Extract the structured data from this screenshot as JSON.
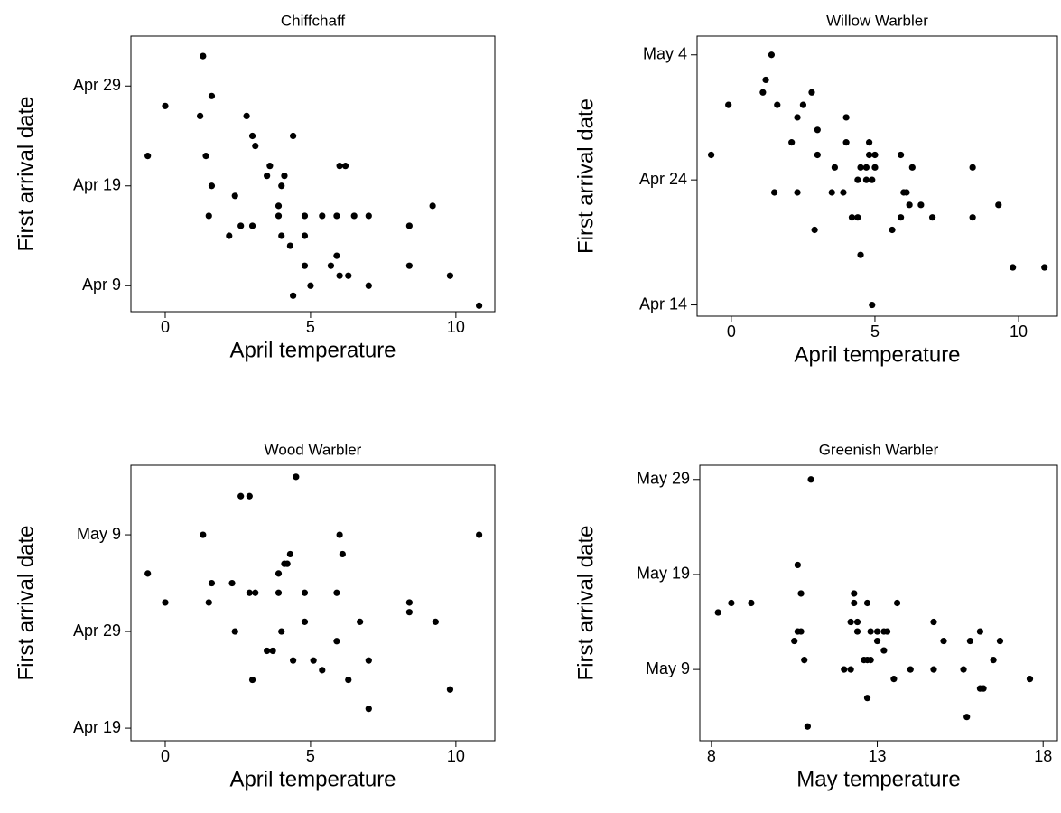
{
  "chart_data": [
    {
      "type": "scatter",
      "title": "Chiffchaff",
      "xlabel": "April temperature",
      "ylabel": "First arrival date",
      "color": "#000000",
      "x": [
        -0.6,
        0.0,
        1.3,
        1.2,
        1.6,
        2.8,
        3.0,
        3.1,
        1.4,
        3.6,
        4.1,
        3.5,
        4.0,
        1.6,
        2.4,
        1.5,
        2.6,
        3.0,
        3.9,
        3.9,
        2.2,
        4.0,
        4.3,
        4.8,
        4.8,
        4.8,
        4.4,
        5.4,
        6.0,
        6.2,
        5.9,
        7.0,
        6.5,
        5.7,
        5.9,
        6.0,
        6.3,
        5.0,
        7.0,
        4.4,
        8.4,
        9.2,
        8.4,
        9.8,
        10.8
      ],
      "y": [
        22,
        27,
        32,
        26,
        28,
        26,
        24,
        23,
        22,
        21,
        20,
        20,
        19,
        19,
        18,
        16,
        15,
        15,
        16,
        17,
        14,
        14,
        13,
        16,
        14,
        11,
        24,
        16,
        21,
        21,
        16,
        16,
        16,
        11,
        12,
        10,
        10,
        9,
        9,
        8,
        15,
        17,
        11,
        10,
        7
      ],
      "xlim": [
        -1.18,
        11.34
      ],
      "ylim": [
        6.4,
        34.0
      ],
      "xticks": [
        0,
        5,
        10
      ],
      "yticks": [
        {
          "value": 9,
          "label": "Apr 9"
        },
        {
          "value": 19,
          "label": "Apr 19"
        },
        {
          "value": 29,
          "label": "Apr 29"
        }
      ]
    },
    {
      "type": "scatter",
      "title": "Willow Warbler",
      "xlabel": "April temperature",
      "ylabel": "First arrival date",
      "color": "#000000",
      "x": [
        -0.7,
        -0.1,
        1.1,
        1.2,
        1.4,
        1.6,
        2.3,
        2.5,
        2.8,
        3.0,
        2.1,
        3.0,
        4.0,
        4.0,
        4.5,
        4.7,
        5.0,
        4.8,
        4.9,
        1.5,
        2.3,
        3.5,
        3.6,
        3.9,
        4.2,
        4.4,
        4.4,
        4.7,
        4.8,
        5.0,
        2.9,
        5.9,
        6.3,
        6.0,
        6.1,
        6.2,
        5.9,
        5.6,
        6.6,
        7.0,
        8.4,
        8.4,
        9.3,
        4.5,
        4.9,
        9.8,
        10.9
      ],
      "y": [
        26,
        30,
        31,
        32,
        34,
        30,
        29,
        30,
        31,
        28,
        27,
        26,
        29,
        27,
        25,
        25,
        25,
        26,
        24,
        23,
        23,
        23,
        25,
        23,
        21,
        21,
        24,
        24,
        27,
        26,
        20,
        26,
        25,
        23,
        23,
        22,
        21,
        20,
        22,
        21,
        25,
        21,
        22,
        18,
        14,
        17,
        17
      ],
      "xlim": [
        -1.19,
        11.35
      ],
      "ylim": [
        13.1,
        35.5
      ],
      "xticks": [
        0,
        5,
        10
      ],
      "yticks": [
        {
          "value": 14,
          "label": "Apr 14"
        },
        {
          "value": 24,
          "label": "Apr 24"
        },
        {
          "value": 34,
          "label": "May 4"
        }
      ]
    },
    {
      "type": "scatter",
      "title": "Wood Warbler",
      "xlabel": "April temperature",
      "ylabel": "First arrival date",
      "color": "#000000",
      "x": [
        -0.6,
        0.0,
        1.3,
        1.6,
        1.5,
        2.6,
        2.9,
        2.9,
        3.1,
        2.3,
        2.4,
        3.5,
        3.7,
        3.0,
        3.9,
        3.9,
        4.1,
        4.2,
        4.3,
        4.5,
        4.8,
        4.8,
        4.4,
        4.0,
        5.1,
        5.4,
        6.0,
        6.1,
        5.9,
        5.9,
        6.3,
        6.7,
        7.0,
        7.0,
        8.4,
        8.4,
        9.3,
        9.8,
        10.8
      ],
      "y": [
        35,
        32,
        39,
        34,
        32,
        43,
        43,
        33,
        33,
        34,
        29,
        27,
        27,
        24,
        33,
        35,
        36,
        36,
        37,
        45,
        33,
        30,
        26,
        29,
        26,
        25,
        39,
        37,
        33,
        28,
        24,
        30,
        26,
        21,
        32,
        31,
        30,
        23,
        39
      ],
      "xlim": [
        -1.18,
        11.34
      ],
      "ylim": [
        17.7,
        46.2
      ],
      "xticks": [
        0,
        5,
        10
      ],
      "yticks": [
        {
          "value": 19,
          "label": "Apr 19"
        },
        {
          "value": 29,
          "label": "Apr 29"
        },
        {
          "value": 39,
          "label": "May 9"
        }
      ]
    },
    {
      "type": "scatter",
      "title": "Greenish Warbler",
      "xlabel": "May temperature",
      "ylabel": "First arrival date",
      "color": "#000000",
      "x": [
        8.2,
        8.6,
        9.2,
        10.5,
        10.6,
        10.7,
        10.6,
        10.7,
        10.8,
        11.0,
        12.0,
        12.2,
        12.3,
        12.3,
        12.2,
        12.4,
        12.4,
        12.6,
        12.7,
        12.8,
        12.7,
        12.8,
        12.7,
        13.0,
        13.0,
        13.2,
        13.2,
        13.3,
        13.5,
        13.6,
        14.0,
        14.7,
        14.7,
        15.0,
        15.6,
        15.8,
        16.1,
        15.7,
        16.1,
        16.2,
        16.5,
        16.7,
        17.6,
        10.9
      ],
      "y": [
        45,
        46,
        46,
        42,
        43,
        43,
        50,
        47,
        40,
        59,
        39,
        39,
        47,
        46,
        44,
        44,
        43,
        40,
        40,
        40,
        36,
        43,
        46,
        43,
        42,
        41,
        43,
        43,
        38,
        46,
        39,
        39,
        44,
        42,
        39,
        42,
        43,
        34,
        37,
        37,
        40,
        42,
        38,
        33
      ],
      "xlim": [
        7.65,
        18.43
      ],
      "ylim": [
        31.5,
        60.5
      ],
      "xticks": [
        8,
        13,
        18
      ],
      "yticks": [
        {
          "value": 39,
          "label": "May 9"
        },
        {
          "value": 49,
          "label": "May 19"
        },
        {
          "value": 59,
          "label": "May 29"
        }
      ]
    }
  ]
}
